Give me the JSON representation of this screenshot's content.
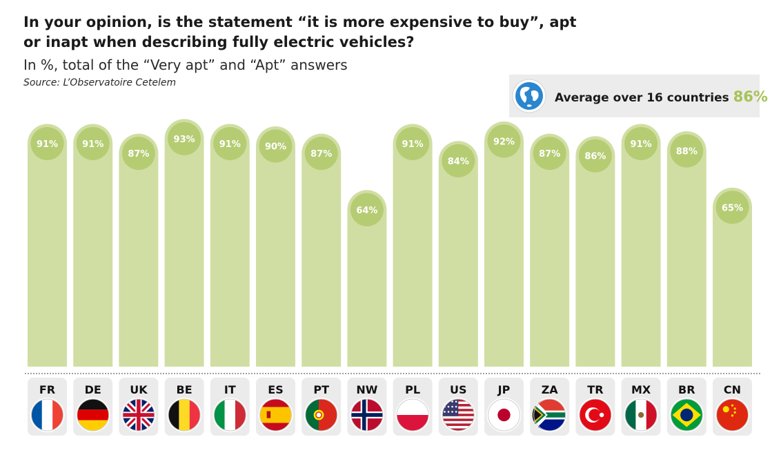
{
  "title": "In your opinion, is the statement “it is more expensive to buy”, apt or inapt when describing fully electric vehicles?",
  "subtitle": "In %, total of the “Very apt” and “Apt” answers",
  "source": "Source: L’Observatoire Cetelem",
  "average": {
    "label": "Average over 16 countries",
    "value": "86%",
    "icon": "globe-icon"
  },
  "colors": {
    "bar": "#d0dea3",
    "bubble": "#b5cc73",
    "accent": "#a6c256",
    "avg_bg": "#ececec"
  },
  "chart_data": {
    "type": "bar",
    "title": "In your opinion, is the statement “it is more expensive to buy”, apt or inapt when describing fully electric vehicles?",
    "ylabel": "%",
    "xlabel": "",
    "ylim": [
      0,
      100
    ],
    "grid": false,
    "categories": [
      "FR",
      "DE",
      "UK",
      "BE",
      "IT",
      "ES",
      "PT",
      "NW",
      "PL",
      "US",
      "JP",
      "ZA",
      "TR",
      "MX",
      "BR",
      "CN"
    ],
    "values": [
      91,
      91,
      87,
      93,
      91,
      90,
      87,
      64,
      91,
      84,
      92,
      87,
      86,
      91,
      88,
      65
    ],
    "value_labels": [
      "91%",
      "91%",
      "87%",
      "93%",
      "91%",
      "90%",
      "87%",
      "64%",
      "91%",
      "84%",
      "92%",
      "87%",
      "86%",
      "91%",
      "88%",
      "65%"
    ],
    "flags": [
      "france-flag-icon",
      "germany-flag-icon",
      "uk-flag-icon",
      "belgium-flag-icon",
      "italy-flag-icon",
      "spain-flag-icon",
      "portugal-flag-icon",
      "norway-flag-icon",
      "poland-flag-icon",
      "usa-flag-icon",
      "japan-flag-icon",
      "south-africa-flag-icon",
      "turkey-flag-icon",
      "mexico-flag-icon",
      "brazil-flag-icon",
      "china-flag-icon"
    ]
  }
}
